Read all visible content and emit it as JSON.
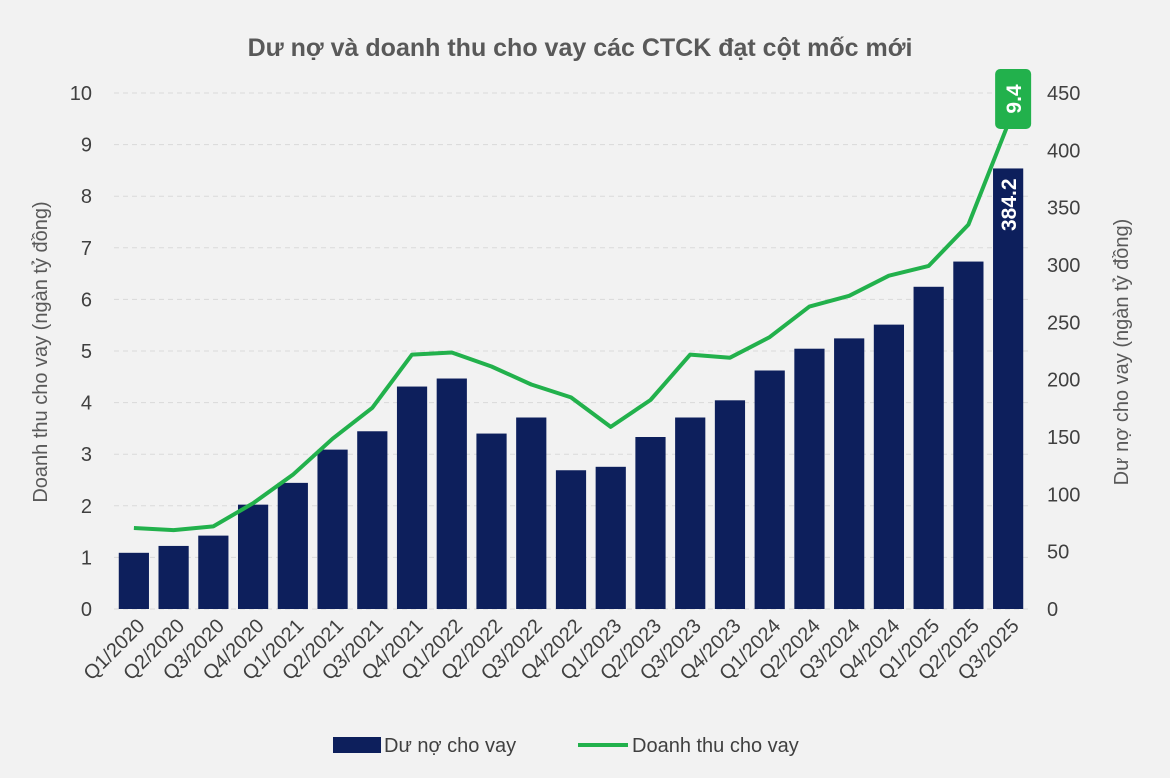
{
  "chart_data": {
    "type": "bar",
    "title": "Dư nợ và doanh thu cho vay các CTCK đạt cột mốc mới",
    "categories": [
      "Q1/2020",
      "Q2/2020",
      "Q3/2020",
      "Q4/2020",
      "Q1/2021",
      "Q2/2021",
      "Q3/2021",
      "Q4/2021",
      "Q1/2022",
      "Q2/2022",
      "Q3/2022",
      "Q4/2022",
      "Q1/2023",
      "Q2/2023",
      "Q3/2023",
      "Q4/2023",
      "Q1/2024",
      "Q2/2024",
      "Q3/2024",
      "Q4/2024",
      "Q1/2025",
      "Q2/2025",
      "Q3/2025"
    ],
    "left_axis": {
      "label": "Doanh thu cho vay (ngàn tỷ đồng)",
      "ylim": [
        0,
        10
      ],
      "ticks": [
        "0",
        "1",
        "2",
        "3",
        "4",
        "5",
        "6",
        "7",
        "8",
        "9",
        "10"
      ]
    },
    "right_axis": {
      "label": "Dư nợ cho vay (ngàn tỷ đồng)",
      "ylim": [
        0,
        450
      ],
      "ticks": [
        "0",
        "50",
        "100",
        "150",
        "200",
        "250",
        "300",
        "350",
        "400",
        "450"
      ]
    },
    "series": [
      {
        "name": "Dư nợ cho vay",
        "type": "bar",
        "axis": "right",
        "color": "#0d1f5c",
        "values": [
          49,
          55,
          64,
          91,
          110,
          139,
          155,
          194,
          201,
          153,
          167,
          121,
          124,
          150,
          167,
          182,
          208,
          227,
          236,
          248,
          281,
          303,
          384.2
        ]
      },
      {
        "name": "Doanh thu cho vay",
        "type": "line",
        "axis": "left",
        "color": "#22b14c",
        "values": [
          1.57,
          1.53,
          1.6,
          2.05,
          2.6,
          3.3,
          3.9,
          4.93,
          4.97,
          4.7,
          4.35,
          4.1,
          3.53,
          4.05,
          4.93,
          4.87,
          5.27,
          5.86,
          6.07,
          6.46,
          6.65,
          7.45,
          9.4
        ]
      }
    ],
    "annotations": {
      "bar_label": "384.2",
      "line_label": "9.4"
    },
    "grid": true,
    "legend": "bottom"
  }
}
